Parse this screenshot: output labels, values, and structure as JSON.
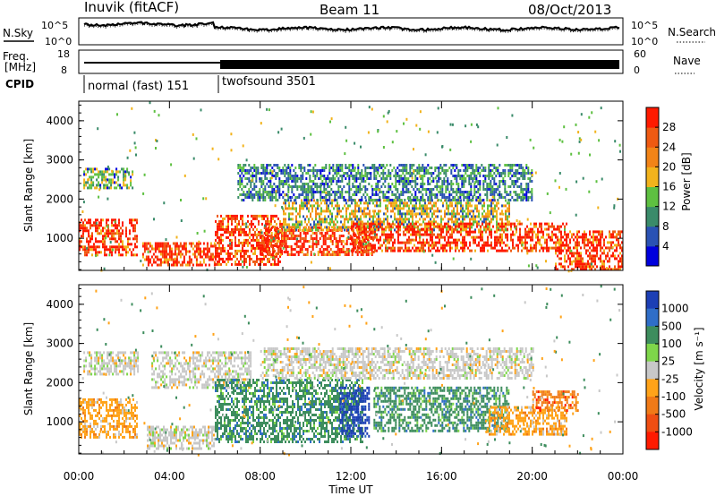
{
  "header": {
    "station": "Inuvik (fitACF)",
    "beam": "Beam 11",
    "date": "08/Oct/2013"
  },
  "noise_panel": {
    "left_label": "N.Sky",
    "right_label": "N.Search",
    "ytick_top": "10^5",
    "ytick_bottom": "10^0",
    "right_tick_top": "10^5",
    "right_tick_bottom": "10^0"
  },
  "freq_panel": {
    "left_label_1": "Freq.",
    "left_label_2": "[MHz]",
    "right_label": "Nave",
    "ytick_top": "18",
    "ytick_bottom": "8",
    "right_tick_top": "60",
    "right_tick_bottom": "0"
  },
  "cpid": {
    "label": "CPID",
    "modes": [
      "normal (fast) 151",
      "twofsound 3501"
    ]
  },
  "chart_data": [
    {
      "type": "heatmap",
      "panel": "power",
      "ylabel": "Slant Range [km]",
      "ylim": [
        180,
        4500
      ],
      "yticks": [
        "1000",
        "2000",
        "3000",
        "4000"
      ],
      "colorbar_label": "Power [dB]",
      "colorbar_ticks": [
        "4",
        "8",
        "12",
        "16",
        "20",
        "24",
        "28"
      ],
      "colorbar_colors": [
        "#0000dd",
        "#2a52b4",
        "#3a8b6a",
        "#5ec041",
        "#f2b31c",
        "#f28417",
        "#ef5a12",
        "#ff1a00"
      ],
      "regions": [
        {
          "t0": 0.0,
          "t1": 2.6,
          "r0": 600,
          "r1": 1500,
          "level": 28
        },
        {
          "t0": 0.2,
          "t1": 2.4,
          "r0": 2300,
          "r1": 2800,
          "level": 12
        },
        {
          "t0": 2.8,
          "t1": 6.0,
          "r0": 300,
          "r1": 900,
          "level": 28
        },
        {
          "t0": 6.0,
          "t1": 9.0,
          "r0": 300,
          "r1": 1600,
          "level": 28
        },
        {
          "t0": 8.0,
          "t1": 13.0,
          "r0": 600,
          "r1": 1300,
          "level": 28
        },
        {
          "t0": 9.0,
          "t1": 19.0,
          "r0": 1200,
          "r1": 2000,
          "level": 16
        },
        {
          "t0": 12.0,
          "t1": 21.5,
          "r0": 700,
          "r1": 1400,
          "level": 28
        },
        {
          "t0": 7.0,
          "t1": 20.0,
          "r0": 2000,
          "r1": 2900,
          "level": 8
        },
        {
          "t0": 21.0,
          "t1": 24.0,
          "r0": 200,
          "r1": 1200,
          "level": 28
        }
      ]
    },
    {
      "type": "heatmap",
      "panel": "velocity",
      "ylabel": "Slant Range [km]",
      "xlabel": "Time UT",
      "xticks": [
        "00:00",
        "04:00",
        "08:00",
        "12:00",
        "16:00",
        "20:00",
        "00:00"
      ],
      "xlim": [
        0,
        24
      ],
      "ylim": [
        180,
        4500
      ],
      "yticks": [
        "1000",
        "2000",
        "3000",
        "4000"
      ],
      "colorbar_label": "Velocity [m s⁻¹]",
      "colorbar_ticks": [
        "1000",
        "500",
        "100",
        "25",
        "-25",
        "-100",
        "-500",
        "-1000"
      ],
      "colorbar_colors": [
        "#1c3fb5",
        "#2f6ec8",
        "#3d8d5d",
        "#7ed64a",
        "#c8c8c8",
        "#ffa319",
        "#f07a17",
        "#ef4e12",
        "#ff1a00"
      ],
      "regions": [
        {
          "t0": 0.0,
          "t1": 2.6,
          "r0": 600,
          "r1": 1600,
          "level": -100
        },
        {
          "t0": 0.2,
          "t1": 2.6,
          "r0": 2200,
          "r1": 2800,
          "level": 0
        },
        {
          "t0": 3.2,
          "t1": 7.6,
          "r0": 1900,
          "r1": 2800,
          "level": 0
        },
        {
          "t0": 3.0,
          "t1": 6.0,
          "r0": 300,
          "r1": 900,
          "level": 0
        },
        {
          "t0": 6.0,
          "t1": 12.5,
          "r0": 500,
          "r1": 2100,
          "level": 100
        },
        {
          "t0": 11.5,
          "t1": 12.8,
          "r0": 600,
          "r1": 1900,
          "level": 1000
        },
        {
          "t0": 13.0,
          "t1": 19.0,
          "r0": 800,
          "r1": 1900,
          "level": 100
        },
        {
          "t0": 18.0,
          "t1": 21.5,
          "r0": 700,
          "r1": 1400,
          "level": -100
        },
        {
          "t0": 20.0,
          "t1": 22.0,
          "r0": 1300,
          "r1": 1800,
          "level": -500
        },
        {
          "t0": 8.0,
          "t1": 20.0,
          "r0": 2100,
          "r1": 2900,
          "level": 0
        }
      ]
    }
  ]
}
